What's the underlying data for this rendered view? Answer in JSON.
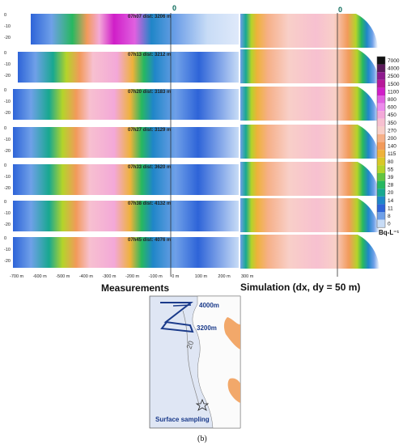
{
  "zero_marker_label": "0",
  "strips": [
    {
      "title": "07h07 dist: 3206 m",
      "y_ticks": [
        "0",
        "-10",
        "-20"
      ]
    },
    {
      "title": "07h13 dist: 3212 m",
      "y_ticks": [
        "0",
        "-10",
        "-20"
      ]
    },
    {
      "title": "07h20 dist: 3183 m",
      "y_ticks": [
        "0",
        "-10",
        "-20"
      ]
    },
    {
      "title": "07h27 dist: 3129 m",
      "y_ticks": [
        "0",
        "-10",
        "-20"
      ]
    },
    {
      "title": "07h33 dist: 3620 m",
      "y_ticks": [
        "0",
        "-10",
        "-20"
      ]
    },
    {
      "title": "07h38 dist: 4132 m",
      "y_ticks": [
        "0",
        "-10",
        "-20"
      ]
    },
    {
      "title": "07h45 dist: 4076 m",
      "y_ticks": [
        "0",
        "-10",
        "-20"
      ]
    }
  ],
  "x_ticks": [
    "-700 m",
    "-600 m",
    "-500 m",
    "-400 m",
    "-300 m",
    "-200 m",
    "-100 m",
    "0 m",
    "100 m",
    "200 m",
    "300 m"
  ],
  "legend": {
    "unit": "Bq-L⁻¹",
    "levels": [
      "7000",
      "4000",
      "2500",
      "1500",
      "1100",
      "800",
      "600",
      "450",
      "350",
      "270",
      "200",
      "140",
      "115",
      "80",
      "55",
      "39",
      "28",
      "20",
      "14",
      "11",
      "8",
      "0"
    ],
    "colors": [
      "#111111",
      "#5a1a5a",
      "#8e1a8e",
      "#b8189a",
      "#d01ec8",
      "#e060e0",
      "#ec8aec",
      "#f3a8d8",
      "#f7c0d0",
      "#f8cfc8",
      "#f6b088",
      "#f29a5a",
      "#eeb23a",
      "#d8c828",
      "#b4d42a",
      "#62c440",
      "#27b860",
      "#18a890",
      "#1f86c8",
      "#2e64d8",
      "#6fa0e8",
      "#c8dcf6"
    ]
  },
  "panel_labels": {
    "measurements": "Measurements",
    "simulation": "Simulation (dx, dy = 50 m)"
  },
  "map": {
    "label_4000": "4000m",
    "label_3200": "3200m",
    "label_20": "20",
    "surface_label": "Surface sampling"
  },
  "caption": "(b)"
}
